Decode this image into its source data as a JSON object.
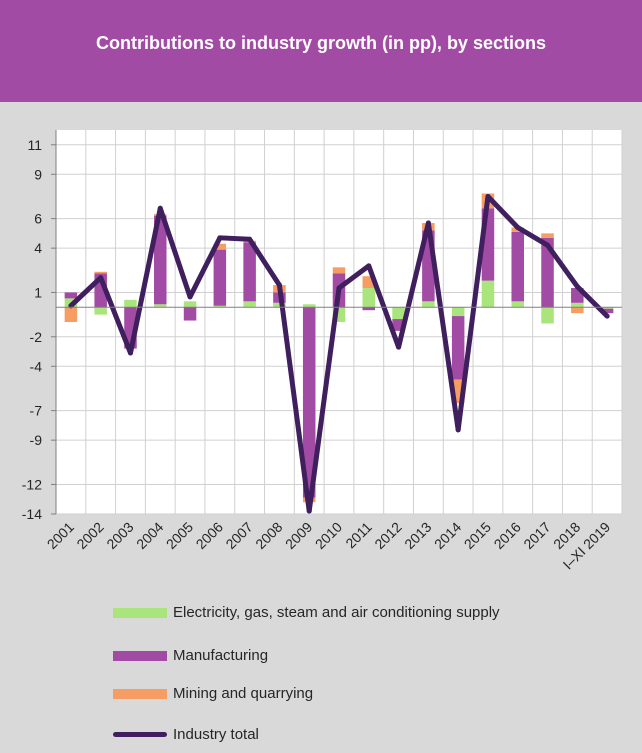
{
  "header": {
    "title": "Contributions to industry growth (in pp), by sections",
    "background": "#a24ba4"
  },
  "chart_data": {
    "type": "bar",
    "stacked": true,
    "title": "Contributions to industry growth (in pp), by sections",
    "categories": [
      "2001",
      "2002",
      "2003",
      "2004",
      "2005",
      "2006",
      "2007",
      "2008",
      "2009",
      "2010",
      "2011",
      "2012",
      "2013",
      "2014",
      "2015",
      "2016",
      "2017",
      "2018",
      "I–XI 2019"
    ],
    "ylim": [
      -14,
      12
    ],
    "y_ticks": [
      11,
      9,
      6,
      4,
      1,
      -2,
      -4,
      -7,
      -9,
      -12,
      -14
    ],
    "grid": true,
    "legend_position": "bottom",
    "series": [
      {
        "name": "Electricity, gas, steam and air conditioning supply",
        "color": "#a9e57c",
        "values": [
          0.6,
          -0.5,
          0.5,
          0.2,
          0.4,
          0.1,
          0.4,
          0.3,
          0.2,
          -1.0,
          1.3,
          -0.8,
          0.4,
          -0.6,
          1.8,
          0.4,
          -1.1,
          0.3,
          -0.1
        ]
      },
      {
        "name": "Manufacturing",
        "color": "#a24ba4",
        "values": [
          0.4,
          2.3,
          -2.8,
          6.0,
          -0.9,
          3.8,
          4.0,
          0.7,
          -12.9,
          2.3,
          -0.2,
          -0.8,
          4.8,
          -4.3,
          4.9,
          4.7,
          4.7,
          1.0,
          -0.3
        ]
      },
      {
        "name": "Mining and quarrying",
        "color": "#f59d62",
        "values": [
          -1.0,
          0.1,
          0.0,
          0.1,
          0.0,
          0.4,
          0.1,
          0.5,
          -0.3,
          0.4,
          0.8,
          0.0,
          0.5,
          -1.6,
          1.0,
          0.3,
          0.3,
          -0.4,
          0.0
        ]
      }
    ],
    "line_series": {
      "name": "Industry total",
      "color": "#3f1f5e",
      "values": [
        0.1,
        2.0,
        -3.1,
        6.7,
        0.7,
        4.7,
        4.6,
        1.5,
        -13.8,
        1.3,
        2.8,
        -2.7,
        5.7,
        -8.3,
        7.5,
        5.4,
        4.2,
        1.4,
        -0.6
      ]
    }
  },
  "legend": {
    "items": [
      {
        "label": "Electricity, gas, steam and air conditioning supply",
        "type": "bar",
        "color": "#a9e57c"
      },
      {
        "label": "Manufacturing",
        "type": "bar",
        "color": "#a24ba4"
      },
      {
        "label": "Mining and quarrying",
        "type": "bar",
        "color": "#f59d62"
      },
      {
        "label": "Industry total",
        "type": "line",
        "color": "#3f1f5e"
      }
    ]
  }
}
